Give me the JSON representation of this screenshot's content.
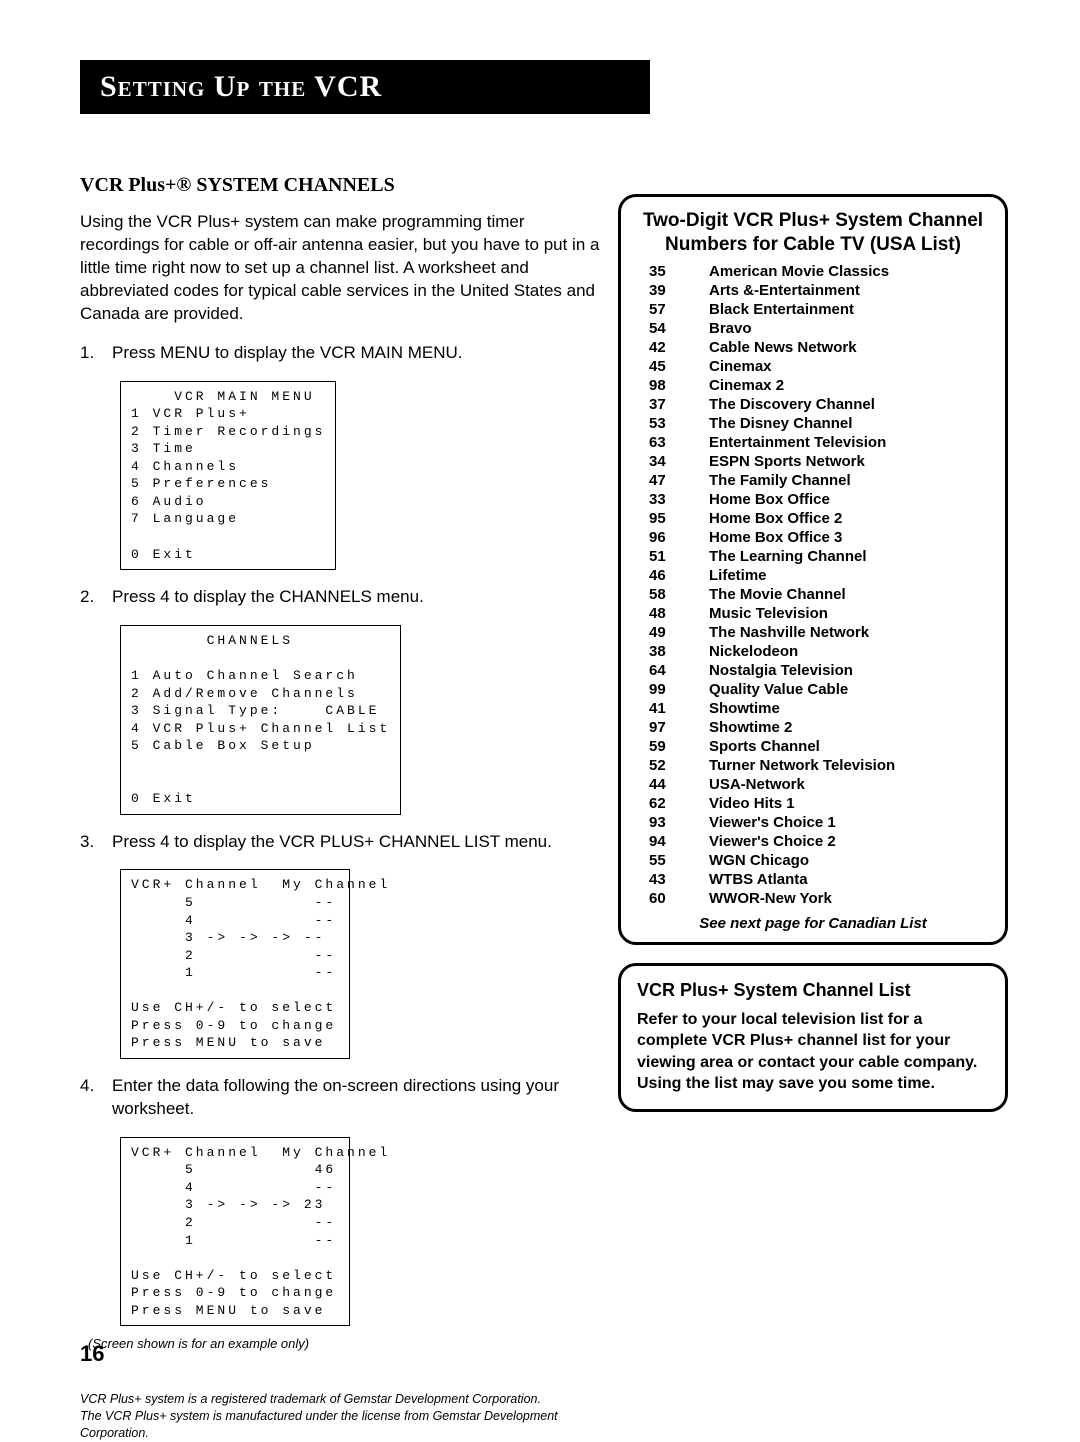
{
  "banner": "Setting Up the VCR",
  "section_heading": "VCR Plus+® SYSTEM CHANNELS",
  "intro": "Using the VCR Plus+ system can make programming timer recordings for cable or off-air antenna easier, but you have to put in a little time right now to set up a channel list. A worksheet and abbreviated codes for typical cable services in the United States and Canada are provided.",
  "steps": [
    "Press MENU to display the VCR MAIN MENU.",
    "Press 4 to display the CHANNELS menu.",
    "Press 4 to display the VCR PLUS+ CHANNEL LIST menu.",
    "Enter the data following the on-screen directions using your worksheet."
  ],
  "menus": {
    "main": "    VCR MAIN MENU\n1 VCR Plus+\n2 Timer Recordings\n3 Time\n4 Channels\n5 Preferences\n6 Audio\n7 Language\n\n0 Exit",
    "channels": "       CHANNELS\n\n1 Auto Channel Search\n2 Add/Remove Channels\n3 Signal Type:    CABLE\n4 VCR Plus+ Channel List\n5 Cable Box Setup\n\n\n0 Exit",
    "list1": "VCR+ Channel  My Channel\n     5           --\n     4           --\n     3 -> -> -> --\n     2           --\n     1           --\n\nUse CH+/- to select\nPress 0-9 to change\nPress MENU to save",
    "list2": "VCR+ Channel  My Channel\n     5           46\n     4           --\n     3 -> -> -> 23\n     2           --\n     1           --\n\nUse CH+/- to select\nPress 0-9 to change\nPress MENU to save"
  },
  "caption": "(Screen shown is for an example only)",
  "footnotes": [
    "VCR Plus+ system is a registered trademark of Gemstar Development Corporation.",
    "The VCR Plus+ system is manufactured under the license from Gemstar Development Corporation."
  ],
  "page_num": "16",
  "sidebox": {
    "title": "Two-Digit VCR Plus+ System Channel Numbers for Cable TV (USA List)",
    "channels": [
      [
        "35",
        "American Movie Classics"
      ],
      [
        "39",
        "Arts &-Entertainment"
      ],
      [
        "57",
        "Black Entertainment"
      ],
      [
        "54",
        "Bravo"
      ],
      [
        "42",
        "Cable News Network"
      ],
      [
        "45",
        "Cinemax"
      ],
      [
        "98",
        "Cinemax 2"
      ],
      [
        "37",
        "The Discovery Channel"
      ],
      [
        "53",
        "The Disney Channel"
      ],
      [
        "63",
        "Entertainment Television"
      ],
      [
        "34",
        "ESPN Sports Network"
      ],
      [
        "47",
        "The Family Channel"
      ],
      [
        "33",
        "Home Box Office"
      ],
      [
        "95",
        "Home Box Office 2"
      ],
      [
        "96",
        "Home Box Office 3"
      ],
      [
        "51",
        "The Learning Channel"
      ],
      [
        "46",
        "Lifetime"
      ],
      [
        "58",
        "The Movie Channel"
      ],
      [
        "48",
        "Music Television"
      ],
      [
        "49",
        "The Nashville Network"
      ],
      [
        "38",
        "Nickelodeon"
      ],
      [
        "64",
        "Nostalgia Television"
      ],
      [
        "99",
        "Quality Value Cable"
      ],
      [
        "41",
        "Showtime"
      ],
      [
        "97",
        "Showtime 2"
      ],
      [
        "59",
        "Sports Channel"
      ],
      [
        "52",
        "Turner Network Television"
      ],
      [
        "44",
        "USA-Network"
      ],
      [
        "62",
        "Video Hits 1"
      ],
      [
        "93",
        "Viewer's Choice 1"
      ],
      [
        "94",
        "Viewer's Choice 2"
      ],
      [
        "55",
        "WGN Chicago"
      ],
      [
        "43",
        "WTBS Atlanta"
      ],
      [
        "60",
        "WWOR-New York"
      ]
    ],
    "see_next": "See next page for Canadian List"
  },
  "sidebox2": {
    "title": "VCR Plus+ System Channel List",
    "body": "Refer to your local television list for a complete VCR Plus+ channel list for your viewing area or contact your cable company. Using the list may save you some time."
  }
}
